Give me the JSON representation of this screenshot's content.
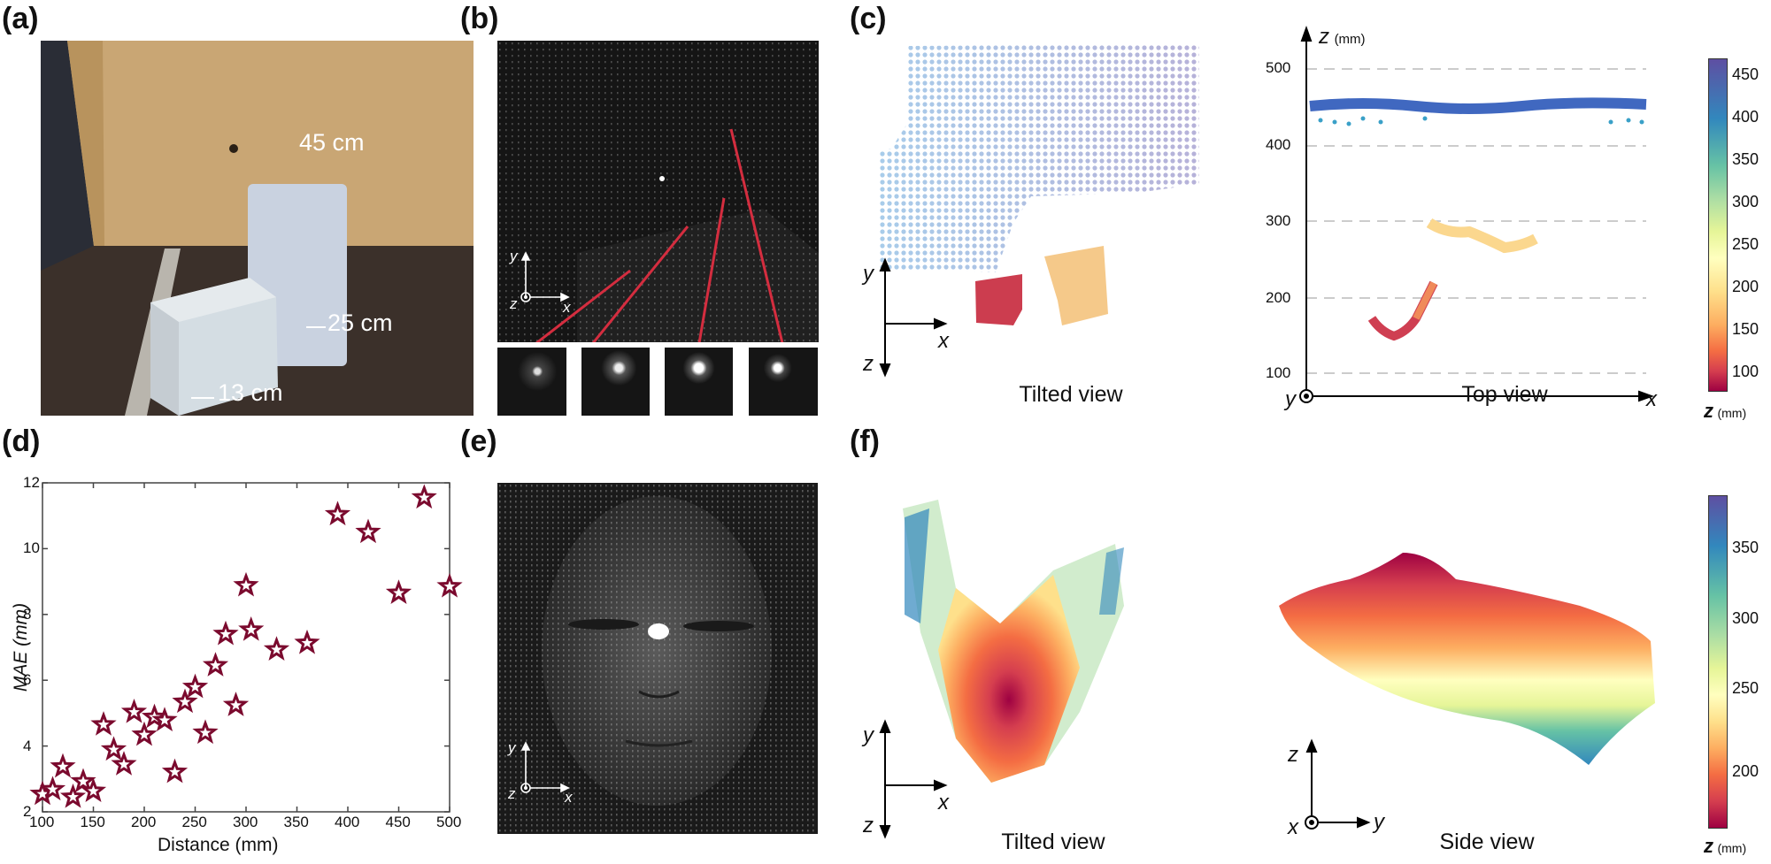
{
  "figure": {
    "panels": {
      "a": {
        "label": "(a)",
        "annotations": [
          "45 cm",
          "25 cm",
          "13 cm"
        ]
      },
      "b": {
        "label": "(b)",
        "axes": {
          "y": "y",
          "z": "z",
          "x": "x"
        },
        "inset_count": 4
      },
      "c": {
        "label": "(c)",
        "tilted_caption": "Tilted view",
        "tilted_axes": {
          "y": "y",
          "z": "z",
          "x": "x"
        },
        "top_caption": "Top view",
        "top_axes": {
          "z": "z",
          "z_unit": "(mm)",
          "y": "y",
          "x": "x"
        },
        "top_ticks": [
          "500",
          "400",
          "300",
          "200",
          "100"
        ],
        "colorbar": {
          "ticks": [
            "450",
            "400",
            "350",
            "300",
            "250",
            "200",
            "150",
            "100"
          ],
          "label": "z",
          "unit": "(mm)",
          "colors": [
            "#5e4fa2",
            "#3288bd",
            "#66c2a5",
            "#abdda4",
            "#e6f598",
            "#ffffbf",
            "#fee08b",
            "#fdae61",
            "#f46d43",
            "#d53e4f",
            "#9e0142"
          ]
        }
      },
      "d": {
        "label": "(d)"
      },
      "e": {
        "label": "(e)",
        "axes": {
          "y": "y",
          "z": "z",
          "x": "x"
        }
      },
      "f": {
        "label": "(f)",
        "tilted_caption": "Tilted view",
        "tilted_axes": {
          "y": "y",
          "z": "z",
          "x": "x"
        },
        "side_caption": "Side view",
        "side_axes": {
          "z": "z",
          "x": "x",
          "y": "y"
        },
        "colorbar": {
          "ticks": [
            "350",
            "300",
            "250",
            "200"
          ],
          "label": "z",
          "unit": "(mm)"
        }
      }
    }
  },
  "chart_data": {
    "type": "scatter",
    "title": "",
    "xlabel": "Distance (mm)",
    "ylabel": "MAE (mm)",
    "xlim": [
      100,
      500
    ],
    "ylim": [
      2,
      12
    ],
    "xticks": [
      "100",
      "150",
      "200",
      "250",
      "300",
      "350",
      "400",
      "450",
      "500"
    ],
    "yticks": [
      "2",
      "4",
      "6",
      "8",
      "10",
      "12"
    ],
    "grid": false,
    "marker": "star",
    "marker_color": "#7b0a2e",
    "series": [
      {
        "name": "MAE",
        "x": [
          100,
          110,
          120,
          130,
          140,
          150,
          160,
          170,
          180,
          190,
          200,
          210,
          220,
          230,
          240,
          250,
          260,
          270,
          280,
          290,
          300,
          305,
          330,
          360,
          390,
          420,
          450,
          475,
          500
        ],
        "y": [
          2.54,
          2.68,
          3.37,
          2.45,
          2.92,
          2.63,
          4.65,
          3.89,
          3.44,
          5.03,
          4.34,
          4.88,
          4.78,
          3.21,
          5.34,
          5.79,
          4.4,
          6.45,
          7.4,
          5.24,
          8.88,
          7.53,
          6.93,
          7.13,
          11.04,
          10.5,
          8.65,
          11.55,
          8.85
        ]
      }
    ]
  }
}
